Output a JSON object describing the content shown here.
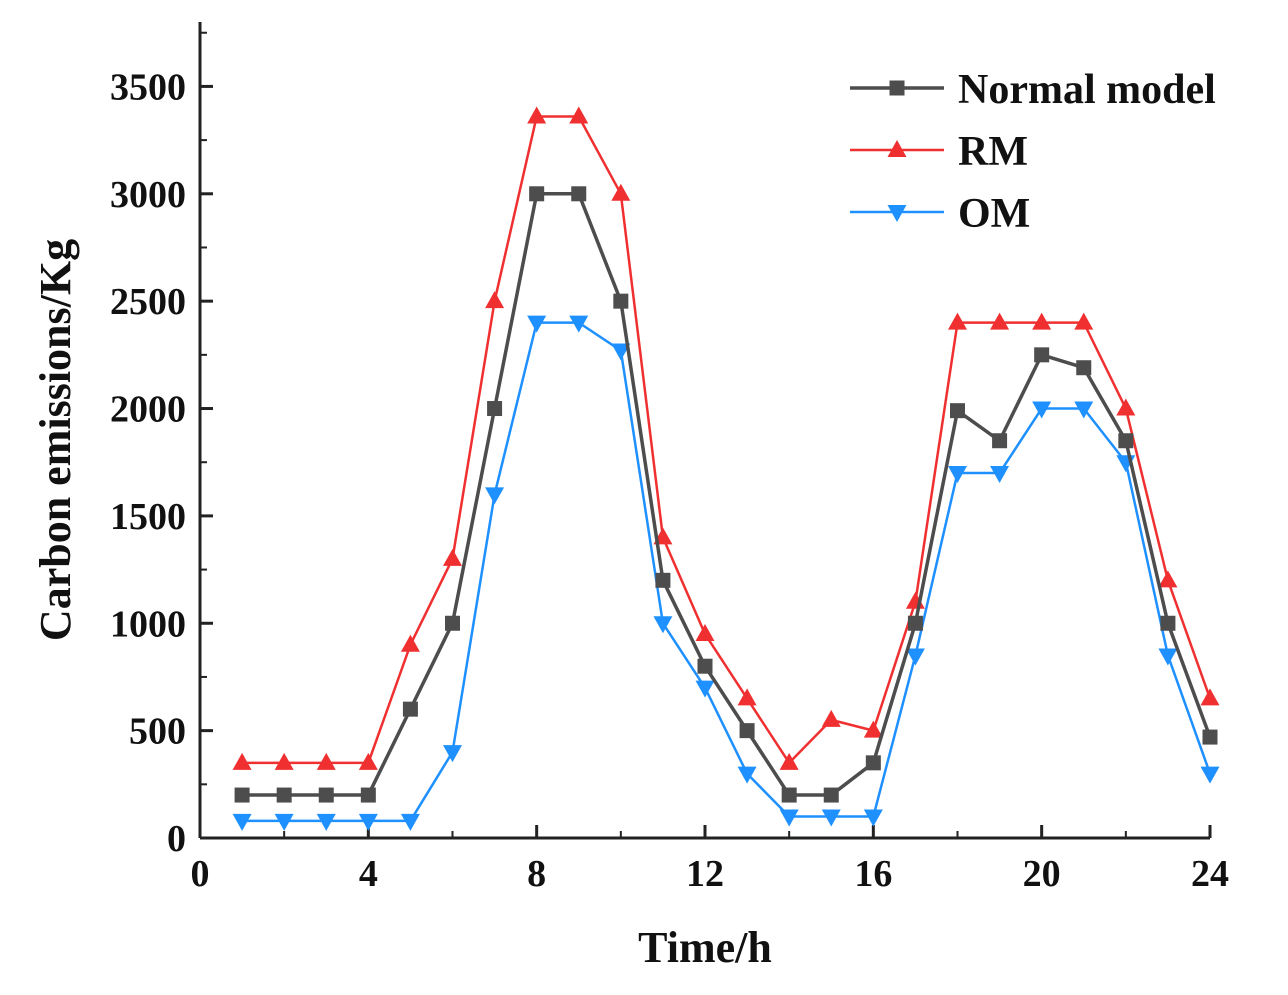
{
  "chart_data": {
    "type": "line",
    "xlabel": "Time/h",
    "ylabel": "Carbon emissions/Kg",
    "xlim": [
      0,
      24
    ],
    "ylim": [
      0,
      3800
    ],
    "xticks": [
      0,
      4,
      8,
      12,
      16,
      20,
      24
    ],
    "yticks": [
      0,
      500,
      1000,
      1500,
      2000,
      2500,
      3000,
      3500
    ],
    "grid": false,
    "legend_position": "top-right",
    "x": [
      1,
      2,
      3,
      4,
      5,
      6,
      7,
      8,
      9,
      10,
      11,
      12,
      13,
      14,
      15,
      16,
      17,
      18,
      19,
      20,
      21,
      22,
      23,
      24
    ],
    "series": [
      {
        "name": "Normal model",
        "color": "#4d4d4d",
        "marker": "square",
        "values": [
          200,
          200,
          200,
          200,
          600,
          1000,
          2000,
          3000,
          3000,
          2500,
          1200,
          800,
          500,
          200,
          200,
          350,
          1000,
          1990,
          1850,
          2250,
          2190,
          1850,
          1000,
          470
        ]
      },
      {
        "name": "RM",
        "color": "#f03030",
        "marker": "triangle-up",
        "values": [
          350,
          350,
          350,
          350,
          900,
          1300,
          2500,
          3360,
          3360,
          3000,
          1400,
          950,
          650,
          350,
          550,
          500,
          1100,
          2400,
          2400,
          2400,
          2400,
          2000,
          1200,
          650
        ]
      },
      {
        "name": "OM",
        "color": "#1e90ff",
        "marker": "triangle-down",
        "values": [
          80,
          80,
          80,
          80,
          80,
          400,
          1600,
          2400,
          2400,
          2270,
          1000,
          700,
          300,
          100,
          100,
          100,
          850,
          1700,
          1700,
          2000,
          2000,
          1750,
          850,
          300
        ]
      }
    ]
  }
}
